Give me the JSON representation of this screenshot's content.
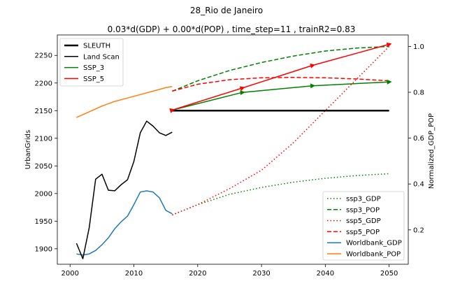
{
  "chart_data": {
    "type": "line",
    "title": "28_Rio de Janeiro",
    "subtitle": "0.03*d(GDP) + 0.00*d(POP) , time_step=11 , trainR2=0.83",
    "xlabel": "",
    "ylabel": "UrbanGrids",
    "y2label": "Normalized_GDP_POP",
    "xlim": [
      1998,
      2053
    ],
    "ylim": [
      1872,
      2287
    ],
    "y2lim": [
      0.05,
      1.05
    ],
    "xticks": [
      2000,
      2010,
      2020,
      2030,
      2040,
      2050
    ],
    "yticks": [
      1900,
      1950,
      2000,
      2050,
      2100,
      2150,
      2200,
      2250
    ],
    "y2ticks": [
      0.2,
      0.4,
      0.6,
      0.8,
      1.0
    ],
    "grid": false,
    "legend_left": {
      "placement": "upper-left",
      "entries": [
        {
          "label": "SLEUTH",
          "color": "#000000",
          "style": "solid-thick"
        },
        {
          "label": "Land Scan",
          "color": "#000000",
          "style": "solid"
        },
        {
          "label": "SSP_3",
          "color": "#008000",
          "style": "solid"
        },
        {
          "label": "SSP_5",
          "color": "#ff0000",
          "style": "solid"
        }
      ]
    },
    "legend_right": {
      "placement": "lower-right",
      "entries": [
        {
          "label": "ssp3_GDP",
          "color": "#008000",
          "style": "dotted"
        },
        {
          "label": "ssp3_POP",
          "color": "#008000",
          "style": "dashed"
        },
        {
          "label": "ssp5_GDP",
          "color": "#ff0000",
          "style": "dotted"
        },
        {
          "label": "ssp5_POP",
          "color": "#ff0000",
          "style": "dashed"
        },
        {
          "label": "Worldbank_GDP",
          "color": "#1f77b4",
          "style": "solid"
        },
        {
          "label": "Worldbank_POP",
          "color": "#ff7f0e",
          "style": "solid"
        }
      ]
    },
    "series_left": [
      {
        "name": "SLEUTH",
        "color": "#000000",
        "style": "solid-thick",
        "x": [
          2016,
          2050
        ],
        "y": [
          2150,
          2150
        ]
      },
      {
        "name": "Land Scan",
        "color": "#000000",
        "style": "solid",
        "x": [
          2001,
          2002,
          2003,
          2004,
          2005,
          2006,
          2007,
          2008,
          2009,
          2010,
          2011,
          2012,
          2013,
          2014,
          2015,
          2016
        ],
        "y": [
          1910,
          1882,
          1938,
          2026,
          2035,
          2006,
          2005,
          2016,
          2025,
          2058,
          2110,
          2131,
          2122,
          2110,
          2105,
          2111
        ]
      },
      {
        "name": "SSP_3",
        "color": "#008000",
        "style": "solid-arrows",
        "x": [
          2016,
          2027,
          2038,
          2050
        ],
        "y": [
          2151,
          2183,
          2195,
          2202
        ]
      },
      {
        "name": "SSP_5",
        "color": "#ff0000",
        "style": "solid-arrows",
        "x": [
          2016,
          2027,
          2038,
          2050
        ],
        "y": [
          2151,
          2191,
          2232,
          2270
        ]
      }
    ],
    "series_right": [
      {
        "name": "ssp3_GDP",
        "color": "#008000",
        "style": "dotted",
        "x": [
          2016,
          2020,
          2025,
          2030,
          2035,
          2040,
          2045,
          2050
        ],
        "y": [
          0.265,
          0.31,
          0.355,
          0.385,
          0.408,
          0.425,
          0.437,
          0.445
        ]
      },
      {
        "name": "ssp3_POP",
        "color": "#008000",
        "style": "dashed",
        "x": [
          2016,
          2020,
          2025,
          2030,
          2035,
          2040,
          2045,
          2050
        ],
        "y": [
          0.805,
          0.85,
          0.895,
          0.93,
          0.958,
          0.98,
          0.993,
          1.0
        ]
      },
      {
        "name": "ssp5_GDP",
        "color": "#ff0000",
        "style": "dotted",
        "x": [
          2016,
          2020,
          2025,
          2030,
          2035,
          2040,
          2045,
          2050
        ],
        "y": [
          0.265,
          0.31,
          0.38,
          0.46,
          0.58,
          0.72,
          0.86,
          1.0
        ]
      },
      {
        "name": "ssp5_POP",
        "color": "#ff0000",
        "style": "dashed",
        "x": [
          2016,
          2020,
          2025,
          2030,
          2035,
          2040,
          2045,
          2050
        ],
        "y": [
          0.805,
          0.835,
          0.855,
          0.863,
          0.865,
          0.863,
          0.858,
          0.85
        ]
      },
      {
        "name": "Worldbank_GDP",
        "color": "#1f77b4",
        "style": "solid",
        "x": [
          2001,
          2002,
          2003,
          2004,
          2005,
          2006,
          2007,
          2008,
          2009,
          2010,
          2011,
          2012,
          2013,
          2014,
          2015,
          2016
        ],
        "y": [
          0.095,
          0.09,
          0.095,
          0.11,
          0.135,
          0.165,
          0.205,
          0.235,
          0.26,
          0.31,
          0.365,
          0.37,
          0.365,
          0.34,
          0.285,
          0.27
        ]
      },
      {
        "name": "Worldbank_POP",
        "color": "#ff7f0e",
        "style": "solid",
        "x": [
          2001,
          2003,
          2005,
          2007,
          2009,
          2011,
          2013,
          2015,
          2016
        ],
        "y": [
          0.69,
          0.715,
          0.74,
          0.76,
          0.775,
          0.79,
          0.805,
          0.82,
          0.825
        ]
      }
    ]
  }
}
